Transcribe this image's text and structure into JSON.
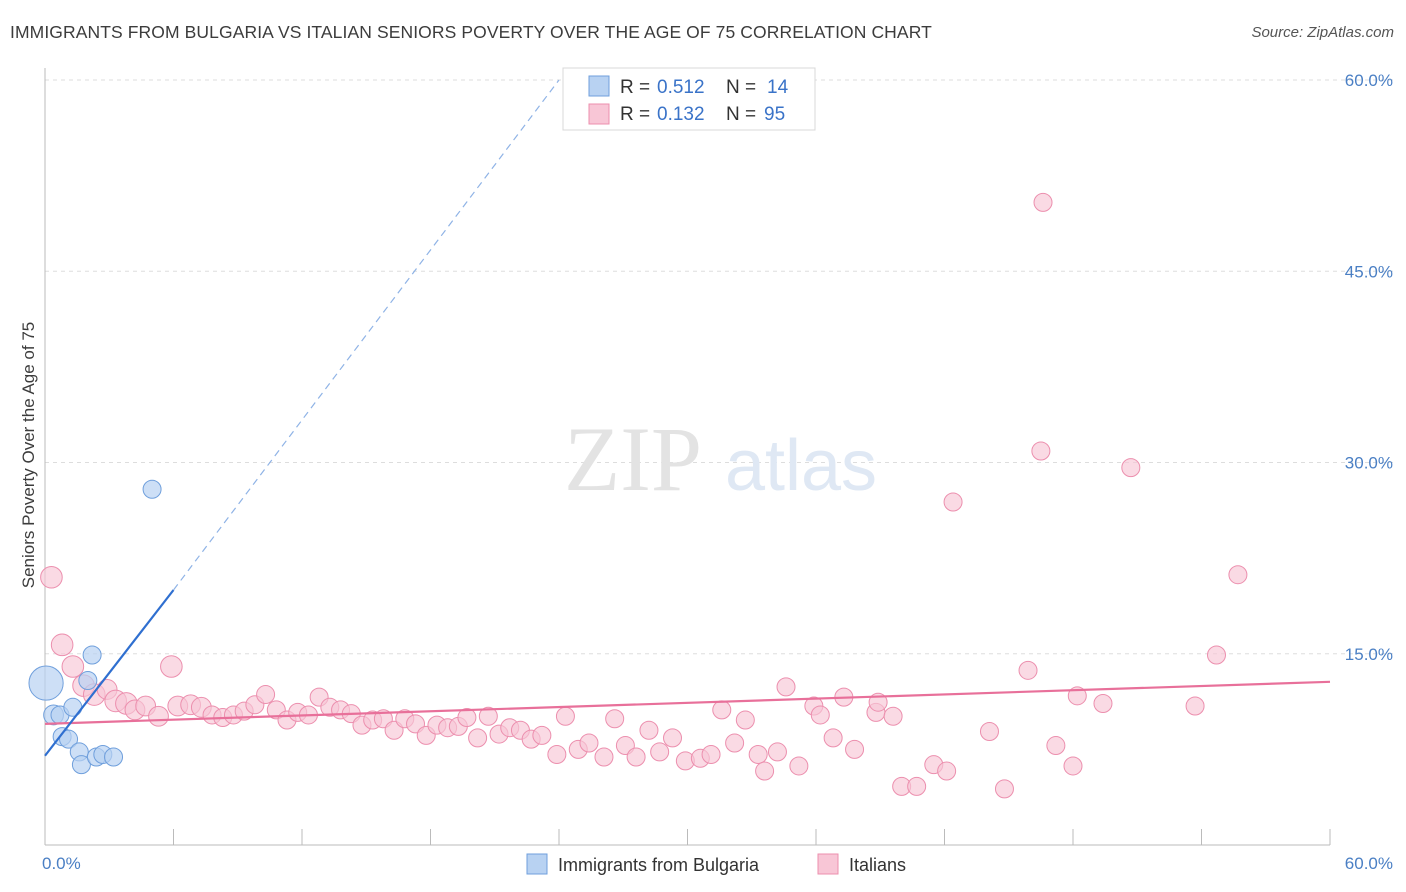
{
  "title": "IMMIGRANTS FROM BULGARIA VS ITALIAN SENIORS POVERTY OVER THE AGE OF 75 CORRELATION CHART",
  "source": "Source: ZipAtlas.com",
  "watermark": {
    "zip": "ZIP",
    "atlas": "atlas"
  },
  "colors": {
    "blue_fill": "#b8d2f2",
    "blue_stroke": "#6f9fdc",
    "blue_line": "#2f6fd0",
    "pink_fill": "#f8c6d6",
    "pink_stroke": "#ec8fae",
    "pink_line": "#e8709a",
    "tick": "#4a7fc4",
    "grid": "#dddddd"
  },
  "legend": {
    "series": [
      {
        "r_label": "R = ",
        "r_value": "0.512",
        "n_label": "N = ",
        "n_value": "14"
      },
      {
        "r_label": "R = ",
        "r_value": "0.132",
        "n_label": "N = ",
        "n_value": "95"
      }
    ]
  },
  "chart_data": {
    "type": "scatter",
    "title": "IMMIGRANTS FROM BULGARIA VS ITALIAN SENIORS POVERTY OVER THE AGE OF 75 CORRELATION CHART",
    "xlabel": "",
    "ylabel": "Seniors Poverty Over the Age of 75",
    "xlim": [
      0,
      60
    ],
    "ylim": [
      0,
      60
    ],
    "x_tick_labels": [
      "0.0%",
      "60.0%"
    ],
    "y_ticks": [
      15,
      30,
      45,
      60
    ],
    "y_tick_labels": [
      "15.0%",
      "30.0%",
      "45.0%",
      "60.0%"
    ],
    "grid": true,
    "series": [
      {
        "name": "Immigrants from Bulgaria",
        "R": 0.512,
        "N": 14,
        "trend": {
          "x0": 0,
          "y0": 7.0,
          "x1": 6.0,
          "y1": 20.0,
          "dash_to_x": 24.0,
          "dash_to_y": 60.0
        },
        "points": [
          {
            "x": 0.05,
            "y": 12.7,
            "s": 1.9
          },
          {
            "x": 0.4,
            "y": 10.2,
            "s": 1.1
          },
          {
            "x": 0.7,
            "y": 10.2,
            "s": 1.0
          },
          {
            "x": 1.3,
            "y": 10.8,
            "s": 1.0
          },
          {
            "x": 0.8,
            "y": 8.5,
            "s": 1.0
          },
          {
            "x": 1.1,
            "y": 8.3,
            "s": 1.0
          },
          {
            "x": 1.6,
            "y": 7.3,
            "s": 1.0
          },
          {
            "x": 1.7,
            "y": 6.3,
            "s": 1.0
          },
          {
            "x": 2.4,
            "y": 6.9,
            "s": 1.0
          },
          {
            "x": 2.7,
            "y": 7.1,
            "s": 1.0
          },
          {
            "x": 3.2,
            "y": 6.9,
            "s": 1.0
          },
          {
            "x": 2.0,
            "y": 12.9,
            "s": 1.0
          },
          {
            "x": 2.2,
            "y": 14.9,
            "s": 1.0
          },
          {
            "x": 5.0,
            "y": 27.9,
            "s": 1.0
          }
        ]
      },
      {
        "name": "Italians",
        "R": 0.132,
        "N": 95,
        "trend": {
          "x0": 0,
          "y0": 9.5,
          "x1": 60,
          "y1": 12.8
        },
        "points": [
          {
            "x": 0.3,
            "y": 21.0,
            "s": 1.2
          },
          {
            "x": 0.8,
            "y": 15.7,
            "s": 1.2
          },
          {
            "x": 1.3,
            "y": 14.0,
            "s": 1.2
          },
          {
            "x": 1.8,
            "y": 12.5,
            "s": 1.2
          },
          {
            "x": 2.3,
            "y": 11.8,
            "s": 1.2
          },
          {
            "x": 2.9,
            "y": 12.2,
            "s": 1.1
          },
          {
            "x": 3.3,
            "y": 11.3,
            "s": 1.2
          },
          {
            "x": 3.8,
            "y": 11.1,
            "s": 1.2
          },
          {
            "x": 4.2,
            "y": 10.6,
            "s": 1.1
          },
          {
            "x": 4.7,
            "y": 10.9,
            "s": 1.1
          },
          {
            "x": 5.3,
            "y": 10.1,
            "s": 1.1
          },
          {
            "x": 5.9,
            "y": 14.0,
            "s": 1.2
          },
          {
            "x": 6.2,
            "y": 10.9,
            "s": 1.1
          },
          {
            "x": 6.8,
            "y": 11.0,
            "s": 1.1
          },
          {
            "x": 7.3,
            "y": 10.8,
            "s": 1.1
          },
          {
            "x": 7.8,
            "y": 10.2,
            "s": 1.0
          },
          {
            "x": 8.3,
            "y": 10.0,
            "s": 1.0
          },
          {
            "x": 8.8,
            "y": 10.2,
            "s": 1.0
          },
          {
            "x": 9.3,
            "y": 10.5,
            "s": 1.0
          },
          {
            "x": 9.8,
            "y": 11.0,
            "s": 1.0
          },
          {
            "x": 10.3,
            "y": 11.8,
            "s": 1.0
          },
          {
            "x": 10.8,
            "y": 10.6,
            "s": 1.0
          },
          {
            "x": 11.3,
            "y": 9.8,
            "s": 1.0
          },
          {
            "x": 11.8,
            "y": 10.4,
            "s": 1.0
          },
          {
            "x": 12.3,
            "y": 10.2,
            "s": 1.0
          },
          {
            "x": 12.8,
            "y": 11.6,
            "s": 1.0
          },
          {
            "x": 13.3,
            "y": 10.8,
            "s": 1.0
          },
          {
            "x": 13.8,
            "y": 10.6,
            "s": 1.0
          },
          {
            "x": 14.3,
            "y": 10.3,
            "s": 1.0
          },
          {
            "x": 14.8,
            "y": 9.4,
            "s": 1.0
          },
          {
            "x": 15.3,
            "y": 9.8,
            "s": 1.0
          },
          {
            "x": 15.8,
            "y": 9.9,
            "s": 1.0
          },
          {
            "x": 16.3,
            "y": 9.0,
            "s": 1.0
          },
          {
            "x": 16.8,
            "y": 9.9,
            "s": 1.0
          },
          {
            "x": 17.3,
            "y": 9.5,
            "s": 1.0
          },
          {
            "x": 17.8,
            "y": 8.6,
            "s": 1.0
          },
          {
            "x": 18.3,
            "y": 9.4,
            "s": 1.0
          },
          {
            "x": 18.8,
            "y": 9.2,
            "s": 1.0
          },
          {
            "x": 19.3,
            "y": 9.3,
            "s": 1.0
          },
          {
            "x": 19.7,
            "y": 10.0,
            "s": 1.0
          },
          {
            "x": 20.2,
            "y": 8.4,
            "s": 1.0
          },
          {
            "x": 20.7,
            "y": 10.1,
            "s": 1.0
          },
          {
            "x": 21.2,
            "y": 8.7,
            "s": 1.0
          },
          {
            "x": 21.7,
            "y": 9.2,
            "s": 1.0
          },
          {
            "x": 22.2,
            "y": 9.0,
            "s": 1.0
          },
          {
            "x": 22.7,
            "y": 8.3,
            "s": 1.0
          },
          {
            "x": 23.2,
            "y": 8.6,
            "s": 1.0
          },
          {
            "x": 23.9,
            "y": 7.1,
            "s": 1.0
          },
          {
            "x": 24.3,
            "y": 10.1,
            "s": 1.0
          },
          {
            "x": 24.9,
            "y": 7.5,
            "s": 1.0
          },
          {
            "x": 25.4,
            "y": 8.0,
            "s": 1.0
          },
          {
            "x": 26.1,
            "y": 6.9,
            "s": 1.0
          },
          {
            "x": 26.6,
            "y": 9.9,
            "s": 1.0
          },
          {
            "x": 27.1,
            "y": 7.8,
            "s": 1.0
          },
          {
            "x": 27.6,
            "y": 6.9,
            "s": 1.0
          },
          {
            "x": 28.2,
            "y": 9.0,
            "s": 1.0
          },
          {
            "x": 28.7,
            "y": 7.3,
            "s": 1.0
          },
          {
            "x": 29.3,
            "y": 8.4,
            "s": 1.0
          },
          {
            "x": 29.9,
            "y": 6.6,
            "s": 1.0
          },
          {
            "x": 30.6,
            "y": 6.8,
            "s": 1.0
          },
          {
            "x": 31.1,
            "y": 7.1,
            "s": 1.0
          },
          {
            "x": 31.6,
            "y": 10.6,
            "s": 1.0
          },
          {
            "x": 32.2,
            "y": 8.0,
            "s": 1.0
          },
          {
            "x": 32.7,
            "y": 9.8,
            "s": 1.0
          },
          {
            "x": 33.3,
            "y": 7.1,
            "s": 1.0
          },
          {
            "x": 33.6,
            "y": 5.8,
            "s": 1.0
          },
          {
            "x": 34.2,
            "y": 7.3,
            "s": 1.0
          },
          {
            "x": 34.6,
            "y": 12.4,
            "s": 1.0
          },
          {
            "x": 35.2,
            "y": 6.2,
            "s": 1.0
          },
          {
            "x": 35.9,
            "y": 10.9,
            "s": 1.0
          },
          {
            "x": 36.2,
            "y": 10.2,
            "s": 1.0
          },
          {
            "x": 36.8,
            "y": 8.4,
            "s": 1.0
          },
          {
            "x": 37.3,
            "y": 11.6,
            "s": 1.0
          },
          {
            "x": 37.8,
            "y": 7.5,
            "s": 1.0
          },
          {
            "x": 38.8,
            "y": 10.4,
            "s": 1.0
          },
          {
            "x": 38.9,
            "y": 11.2,
            "s": 1.0
          },
          {
            "x": 39.6,
            "y": 10.1,
            "s": 1.0
          },
          {
            "x": 40.0,
            "y": 4.6,
            "s": 1.0
          },
          {
            "x": 40.7,
            "y": 4.6,
            "s": 1.0
          },
          {
            "x": 41.5,
            "y": 6.3,
            "s": 1.0
          },
          {
            "x": 42.1,
            "y": 5.8,
            "s": 1.0
          },
          {
            "x": 42.4,
            "y": 26.9,
            "s": 1.0
          },
          {
            "x": 44.1,
            "y": 8.9,
            "s": 1.0
          },
          {
            "x": 44.8,
            "y": 4.4,
            "s": 1.0
          },
          {
            "x": 45.9,
            "y": 13.7,
            "s": 1.0
          },
          {
            "x": 46.5,
            "y": 30.9,
            "s": 1.0
          },
          {
            "x": 46.6,
            "y": 50.4,
            "s": 1.0
          },
          {
            "x": 47.2,
            "y": 7.8,
            "s": 1.0
          },
          {
            "x": 48.0,
            "y": 6.2,
            "s": 1.0
          },
          {
            "x": 48.2,
            "y": 11.7,
            "s": 1.0
          },
          {
            "x": 49.4,
            "y": 11.1,
            "s": 1.0
          },
          {
            "x": 50.7,
            "y": 29.6,
            "s": 1.0
          },
          {
            "x": 53.7,
            "y": 10.9,
            "s": 1.0
          },
          {
            "x": 54.7,
            "y": 14.9,
            "s": 1.0
          },
          {
            "x": 55.7,
            "y": 21.2,
            "s": 1.0
          }
        ]
      }
    ]
  }
}
